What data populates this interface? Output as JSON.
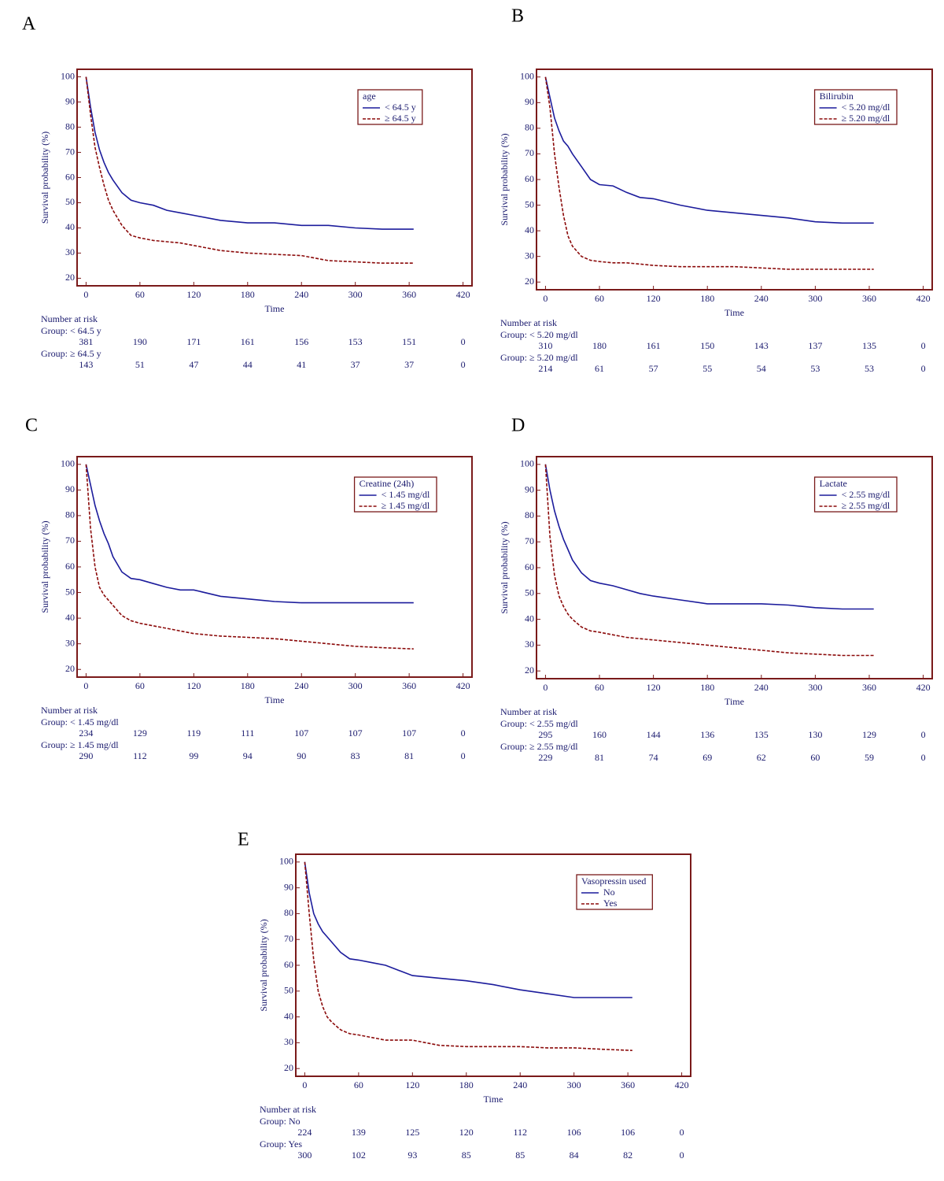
{
  "chart_data": [
    {
      "type": "line",
      "label": "A",
      "xlabel": "Time",
      "ylabel": "Survival probability (%)",
      "legend_title": "age",
      "xlim": [
        -10,
        430
      ],
      "ylim": [
        17,
        103
      ],
      "xticks": [
        0,
        60,
        120,
        180,
        240,
        300,
        360,
        420
      ],
      "yticks": [
        20,
        30,
        40,
        50,
        60,
        70,
        80,
        90,
        100
      ],
      "x": [
        0,
        5,
        10,
        15,
        20,
        25,
        30,
        40,
        50,
        60,
        75,
        90,
        105,
        120,
        150,
        180,
        210,
        240,
        270,
        300,
        330,
        365
      ],
      "series": [
        {
          "name": "< 64.5 y",
          "color": "#1c1c9c",
          "dashed": false,
          "values": [
            100,
            88,
            78,
            71,
            66,
            62,
            59,
            54,
            51,
            50,
            49,
            47,
            46,
            45,
            43,
            42,
            42,
            41,
            41,
            40,
            39.5,
            39.5
          ]
        },
        {
          "name": "≥ 64.5 y",
          "color": "#8b0a0a",
          "dashed": true,
          "values": [
            100,
            85,
            72,
            64,
            57,
            51,
            47,
            41,
            37,
            36,
            35,
            34.5,
            34,
            33,
            31,
            30,
            29.5,
            29,
            27,
            26.5,
            26,
            26
          ]
        }
      ],
      "risk_title": "Number at risk",
      "risk": [
        {
          "label": "Group: < 64.5 y",
          "counts": [
            381,
            190,
            171,
            161,
            156,
            153,
            151,
            0
          ]
        },
        {
          "label": "Group: ≥ 64.5 y",
          "counts": [
            143,
            51,
            47,
            44,
            41,
            37,
            37,
            0
          ]
        }
      ]
    },
    {
      "type": "line",
      "label": "B",
      "xlabel": "Time",
      "ylabel": "Survival probability (%)",
      "legend_title": "Bilirubin",
      "xlim": [
        -10,
        430
      ],
      "ylim": [
        17,
        103
      ],
      "xticks": [
        0,
        60,
        120,
        180,
        240,
        300,
        360,
        420
      ],
      "yticks": [
        20,
        30,
        40,
        50,
        60,
        70,
        80,
        90,
        100
      ],
      "x": [
        0,
        5,
        10,
        15,
        20,
        25,
        30,
        40,
        50,
        60,
        75,
        90,
        105,
        120,
        150,
        180,
        210,
        240,
        270,
        300,
        330,
        365
      ],
      "series": [
        {
          "name": "< 5.20 mg/dl",
          "color": "#1c1c9c",
          "dashed": false,
          "values": [
            100,
            92,
            84,
            79,
            75,
            73,
            70,
            65,
            60,
            58,
            57.5,
            55,
            53,
            52.5,
            50,
            48,
            47,
            46,
            45,
            43.5,
            43,
            43
          ]
        },
        {
          "name": "≥ 5.20 mg/dl",
          "color": "#8b0a0a",
          "dashed": true,
          "values": [
            100,
            88,
            70,
            57,
            46,
            38,
            34,
            30,
            28.5,
            28,
            27.5,
            27.5,
            27,
            26.5,
            26,
            26,
            26,
            25.5,
            25,
            25,
            25,
            25
          ]
        }
      ],
      "risk_title": "Number at risk",
      "risk": [
        {
          "label": "Group: < 5.20 mg/dl",
          "counts": [
            310,
            180,
            161,
            150,
            143,
            137,
            135,
            0
          ]
        },
        {
          "label": "Group: ≥ 5.20 mg/dl",
          "counts": [
            214,
            61,
            57,
            55,
            54,
            53,
            53,
            0
          ]
        }
      ]
    },
    {
      "type": "line",
      "label": "C",
      "xlabel": "Time",
      "ylabel": "Survival probability (%)",
      "legend_title": "Creatine (24h)",
      "xlim": [
        -10,
        430
      ],
      "ylim": [
        17,
        103
      ],
      "xticks": [
        0,
        60,
        120,
        180,
        240,
        300,
        360,
        420
      ],
      "yticks": [
        20,
        30,
        40,
        50,
        60,
        70,
        80,
        90,
        100
      ],
      "x": [
        0,
        5,
        10,
        15,
        20,
        25,
        30,
        40,
        50,
        60,
        75,
        90,
        105,
        120,
        150,
        180,
        210,
        240,
        270,
        300,
        330,
        365
      ],
      "series": [
        {
          "name": "< 1.45 mg/dl",
          "color": "#1c1c9c",
          "dashed": false,
          "values": [
            100,
            92,
            84,
            78,
            73,
            69,
            64,
            58,
            55.5,
            55,
            53.5,
            52,
            51,
            51,
            48.5,
            47.5,
            46.5,
            46,
            46,
            46,
            46,
            46
          ]
        },
        {
          "name": "≥ 1.45 mg/dl",
          "color": "#8b0a0a",
          "dashed": true,
          "values": [
            100,
            75,
            60,
            52,
            49,
            47,
            45,
            41,
            39,
            38,
            37,
            36,
            35,
            34,
            33,
            32.5,
            32,
            31,
            30,
            29,
            28.5,
            28
          ]
        }
      ],
      "risk_title": "Number at risk",
      "risk": [
        {
          "label": "Group: < 1.45 mg/dl",
          "counts": [
            234,
            129,
            119,
            111,
            107,
            107,
            107,
            0
          ]
        },
        {
          "label": "Group: ≥ 1.45 mg/dl",
          "counts": [
            290,
            112,
            99,
            94,
            90,
            83,
            81,
            0
          ]
        }
      ]
    },
    {
      "type": "line",
      "label": "D",
      "xlabel": "Time",
      "ylabel": "Survival probability (%)",
      "legend_title": "Lactate",
      "xlim": [
        -10,
        430
      ],
      "ylim": [
        17,
        103
      ],
      "xticks": [
        0,
        60,
        120,
        180,
        240,
        300,
        360,
        420
      ],
      "yticks": [
        20,
        30,
        40,
        50,
        60,
        70,
        80,
        90,
        100
      ],
      "x": [
        0,
        5,
        10,
        15,
        20,
        25,
        30,
        40,
        50,
        60,
        75,
        90,
        105,
        120,
        150,
        180,
        210,
        240,
        270,
        300,
        330,
        365
      ],
      "series": [
        {
          "name": "< 2.55 mg/dl",
          "color": "#1c1c9c",
          "dashed": false,
          "values": [
            100,
            90,
            82,
            76,
            71,
            67,
            63,
            58,
            55,
            54,
            53,
            51.5,
            50,
            49,
            47.5,
            46,
            46,
            46,
            45.5,
            44.5,
            44,
            44
          ]
        },
        {
          "name": "≥ 2.55 mg/dl",
          "color": "#8b0a0a",
          "dashed": true,
          "values": [
            100,
            72,
            57,
            49,
            45,
            42,
            40,
            37,
            35.5,
            35,
            34,
            33,
            32.5,
            32,
            31,
            30,
            29,
            28,
            27,
            26.5,
            26,
            26
          ]
        }
      ],
      "risk_title": "Number at risk",
      "risk": [
        {
          "label": "Group: < 2.55 mg/dl",
          "counts": [
            295,
            160,
            144,
            136,
            135,
            130,
            129,
            0
          ]
        },
        {
          "label": "Group: ≥ 2.55 mg/dl",
          "counts": [
            229,
            81,
            74,
            69,
            62,
            60,
            59,
            0
          ]
        }
      ]
    },
    {
      "type": "line",
      "label": "E",
      "xlabel": "Time",
      "ylabel": "Survival probability (%)",
      "legend_title": "Vasopressin used",
      "xlim": [
        -10,
        430
      ],
      "ylim": [
        17,
        103
      ],
      "xticks": [
        0,
        60,
        120,
        180,
        240,
        300,
        360,
        420
      ],
      "yticks": [
        20,
        30,
        40,
        50,
        60,
        70,
        80,
        90,
        100
      ],
      "x": [
        0,
        5,
        10,
        15,
        20,
        25,
        30,
        40,
        50,
        60,
        75,
        90,
        105,
        120,
        150,
        180,
        210,
        240,
        270,
        300,
        330,
        365
      ],
      "series": [
        {
          "name": "No",
          "color": "#1c1c9c",
          "dashed": false,
          "values": [
            100,
            88,
            80,
            76,
            73,
            71,
            69,
            65,
            62.5,
            62,
            61,
            60,
            58,
            56,
            55,
            54,
            52.5,
            50.5,
            49,
            47.5,
            47.5,
            47.5
          ]
        },
        {
          "name": "Yes",
          "color": "#8b0a0a",
          "dashed": true,
          "values": [
            100,
            80,
            62,
            50,
            44,
            40,
            38,
            35,
            33.5,
            33,
            32,
            31,
            31,
            31,
            29,
            28.5,
            28.5,
            28.5,
            28,
            28,
            27.5,
            27
          ]
        }
      ],
      "risk_title": "Number at risk",
      "risk": [
        {
          "label": "Group: No",
          "counts": [
            224,
            139,
            125,
            120,
            112,
            106,
            106,
            0
          ]
        },
        {
          "label": "Group: Yes",
          "counts": [
            300,
            102,
            93,
            85,
            85,
            84,
            82,
            0
          ]
        }
      ]
    }
  ]
}
